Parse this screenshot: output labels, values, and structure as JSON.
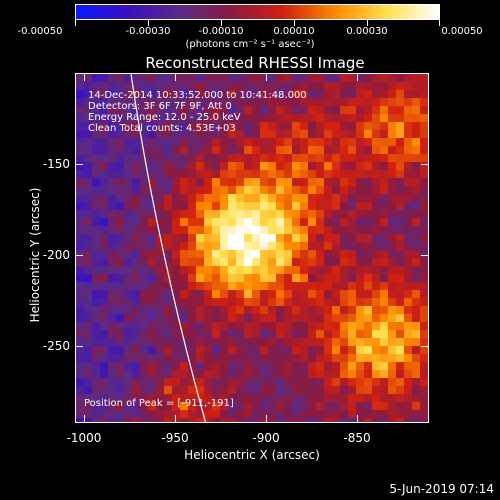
{
  "colorbar": {
    "tick_labels": [
      "-0.00050",
      "-0.00030",
      "-0.00010",
      "0.00010",
      "0.00030",
      "0.00050"
    ],
    "units": "(photons cm⁻² s⁻¹ asec⁻²)",
    "colors": [
      "#0a1aff",
      "#3a10c0",
      "#5a2a86",
      "#8a1a40",
      "#d02010",
      "#ff8a00",
      "#ffe050",
      "#ffffff"
    ]
  },
  "title": "Reconstructed RHESSI Image",
  "annotations": {
    "time": "14-Dec-2014 10:33:52.000 to 10:41:48.000",
    "detectors": "Detectors: 3F 6F 7F 9F, Att 0",
    "energy": "Energy Range: 12.0 - 25.0 keV",
    "clean": "Clean     Total counts: 4.53E+03",
    "peak": "Position of Peak = [-911,-191]"
  },
  "axes": {
    "xlabel": "Heliocentric X (arcsec)",
    "ylabel": "Heliocentric Y (arcsec)",
    "xticks": [
      "-1000",
      "-950",
      "-900",
      "-850"
    ],
    "yticks": [
      "-150",
      "-200",
      "-250"
    ]
  },
  "date": "5-Jun-2019 07:14"
}
